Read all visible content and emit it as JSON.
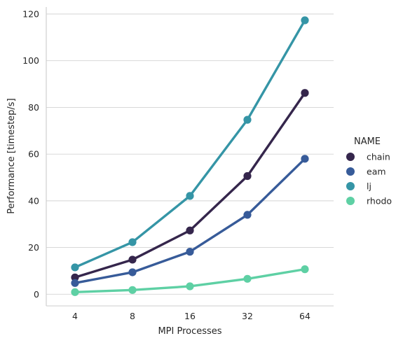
{
  "chart_data": {
    "type": "line",
    "xlabel": "MPI Processes",
    "ylabel": "Performance [timestep/s]",
    "categories": [
      "4",
      "8",
      "16",
      "32",
      "64"
    ],
    "ylim": [
      -5,
      123
    ],
    "yticks": [
      0,
      20,
      40,
      60,
      80,
      100,
      120
    ],
    "grid": "horizontal",
    "legend": {
      "title": "NAME",
      "placement": "right"
    },
    "series": [
      {
        "name": "chain",
        "color": "#35264c",
        "values": [
          7.2,
          14.8,
          27.3,
          50.6,
          86.2
        ]
      },
      {
        "name": "eam",
        "color": "#375b99",
        "values": [
          4.8,
          9.4,
          18.2,
          34.0,
          58.0
        ]
      },
      {
        "name": "lj",
        "color": "#3595a6",
        "values": [
          11.5,
          22.3,
          42.1,
          74.7,
          117.3
        ]
      },
      {
        "name": "rhodo",
        "color": "#5ed0a4",
        "values": [
          0.9,
          1.8,
          3.4,
          6.6,
          10.7
        ]
      }
    ]
  }
}
